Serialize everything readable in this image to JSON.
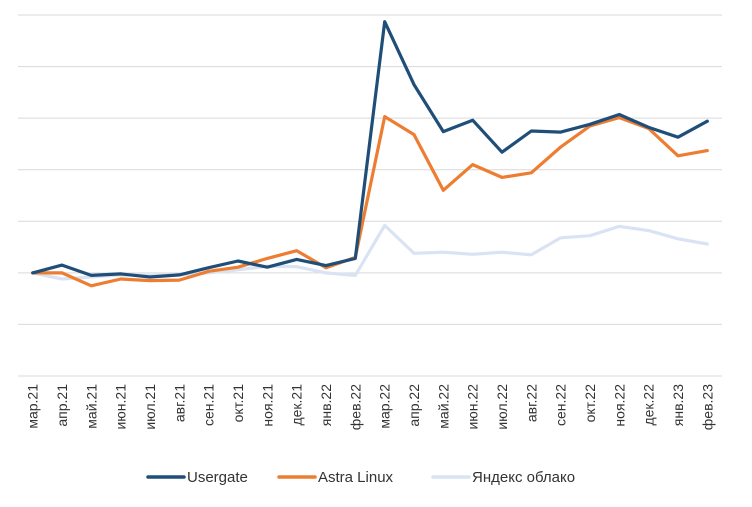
{
  "chart_data": {
    "type": "line",
    "title": "",
    "xlabel": "",
    "ylabel": "",
    "y_axis_labels_visible": false,
    "ylim": [
      -100,
      600
    ],
    "grid": true,
    "legend_position": "bottom",
    "categories": [
      "мар.21",
      "апр.21",
      "май.21",
      "июн.21",
      "июл.21",
      "авг.21",
      "сен.21",
      "окт.21",
      "ноя.21",
      "дек.21",
      "янв.22",
      "фев.22",
      "мар.22",
      "апр.22",
      "май.22",
      "июн.22",
      "июл.22",
      "авг.22",
      "сен.22",
      "окт.22",
      "ноя.22",
      "дек.22",
      "янв.23",
      "фев.23"
    ],
    "series": [
      {
        "name": "Usergate",
        "color": "#1f4e79",
        "values": [
          100,
          115,
          95,
          98,
          92,
          96,
          110,
          123,
          111,
          126,
          114,
          128,
          587,
          465,
          374,
          396,
          334,
          375,
          373,
          388,
          407,
          382,
          363,
          394
        ]
      },
      {
        "name": "Astra Linux",
        "color": "#ed7d31",
        "values": [
          100,
          100,
          75,
          88,
          85,
          86,
          103,
          111,
          128,
          143,
          110,
          130,
          403,
          368,
          260,
          310,
          285,
          294,
          344,
          385,
          401,
          380,
          327,
          337
        ]
      },
      {
        "name": "Яндекс облако",
        "color": "#dae3f3",
        "values": [
          100,
          88,
          92,
          96,
          95,
          96,
          100,
          106,
          113,
          112,
          100,
          95,
          192,
          138,
          140,
          136,
          140,
          135,
          168,
          172,
          190,
          182,
          166,
          156
        ]
      }
    ]
  }
}
